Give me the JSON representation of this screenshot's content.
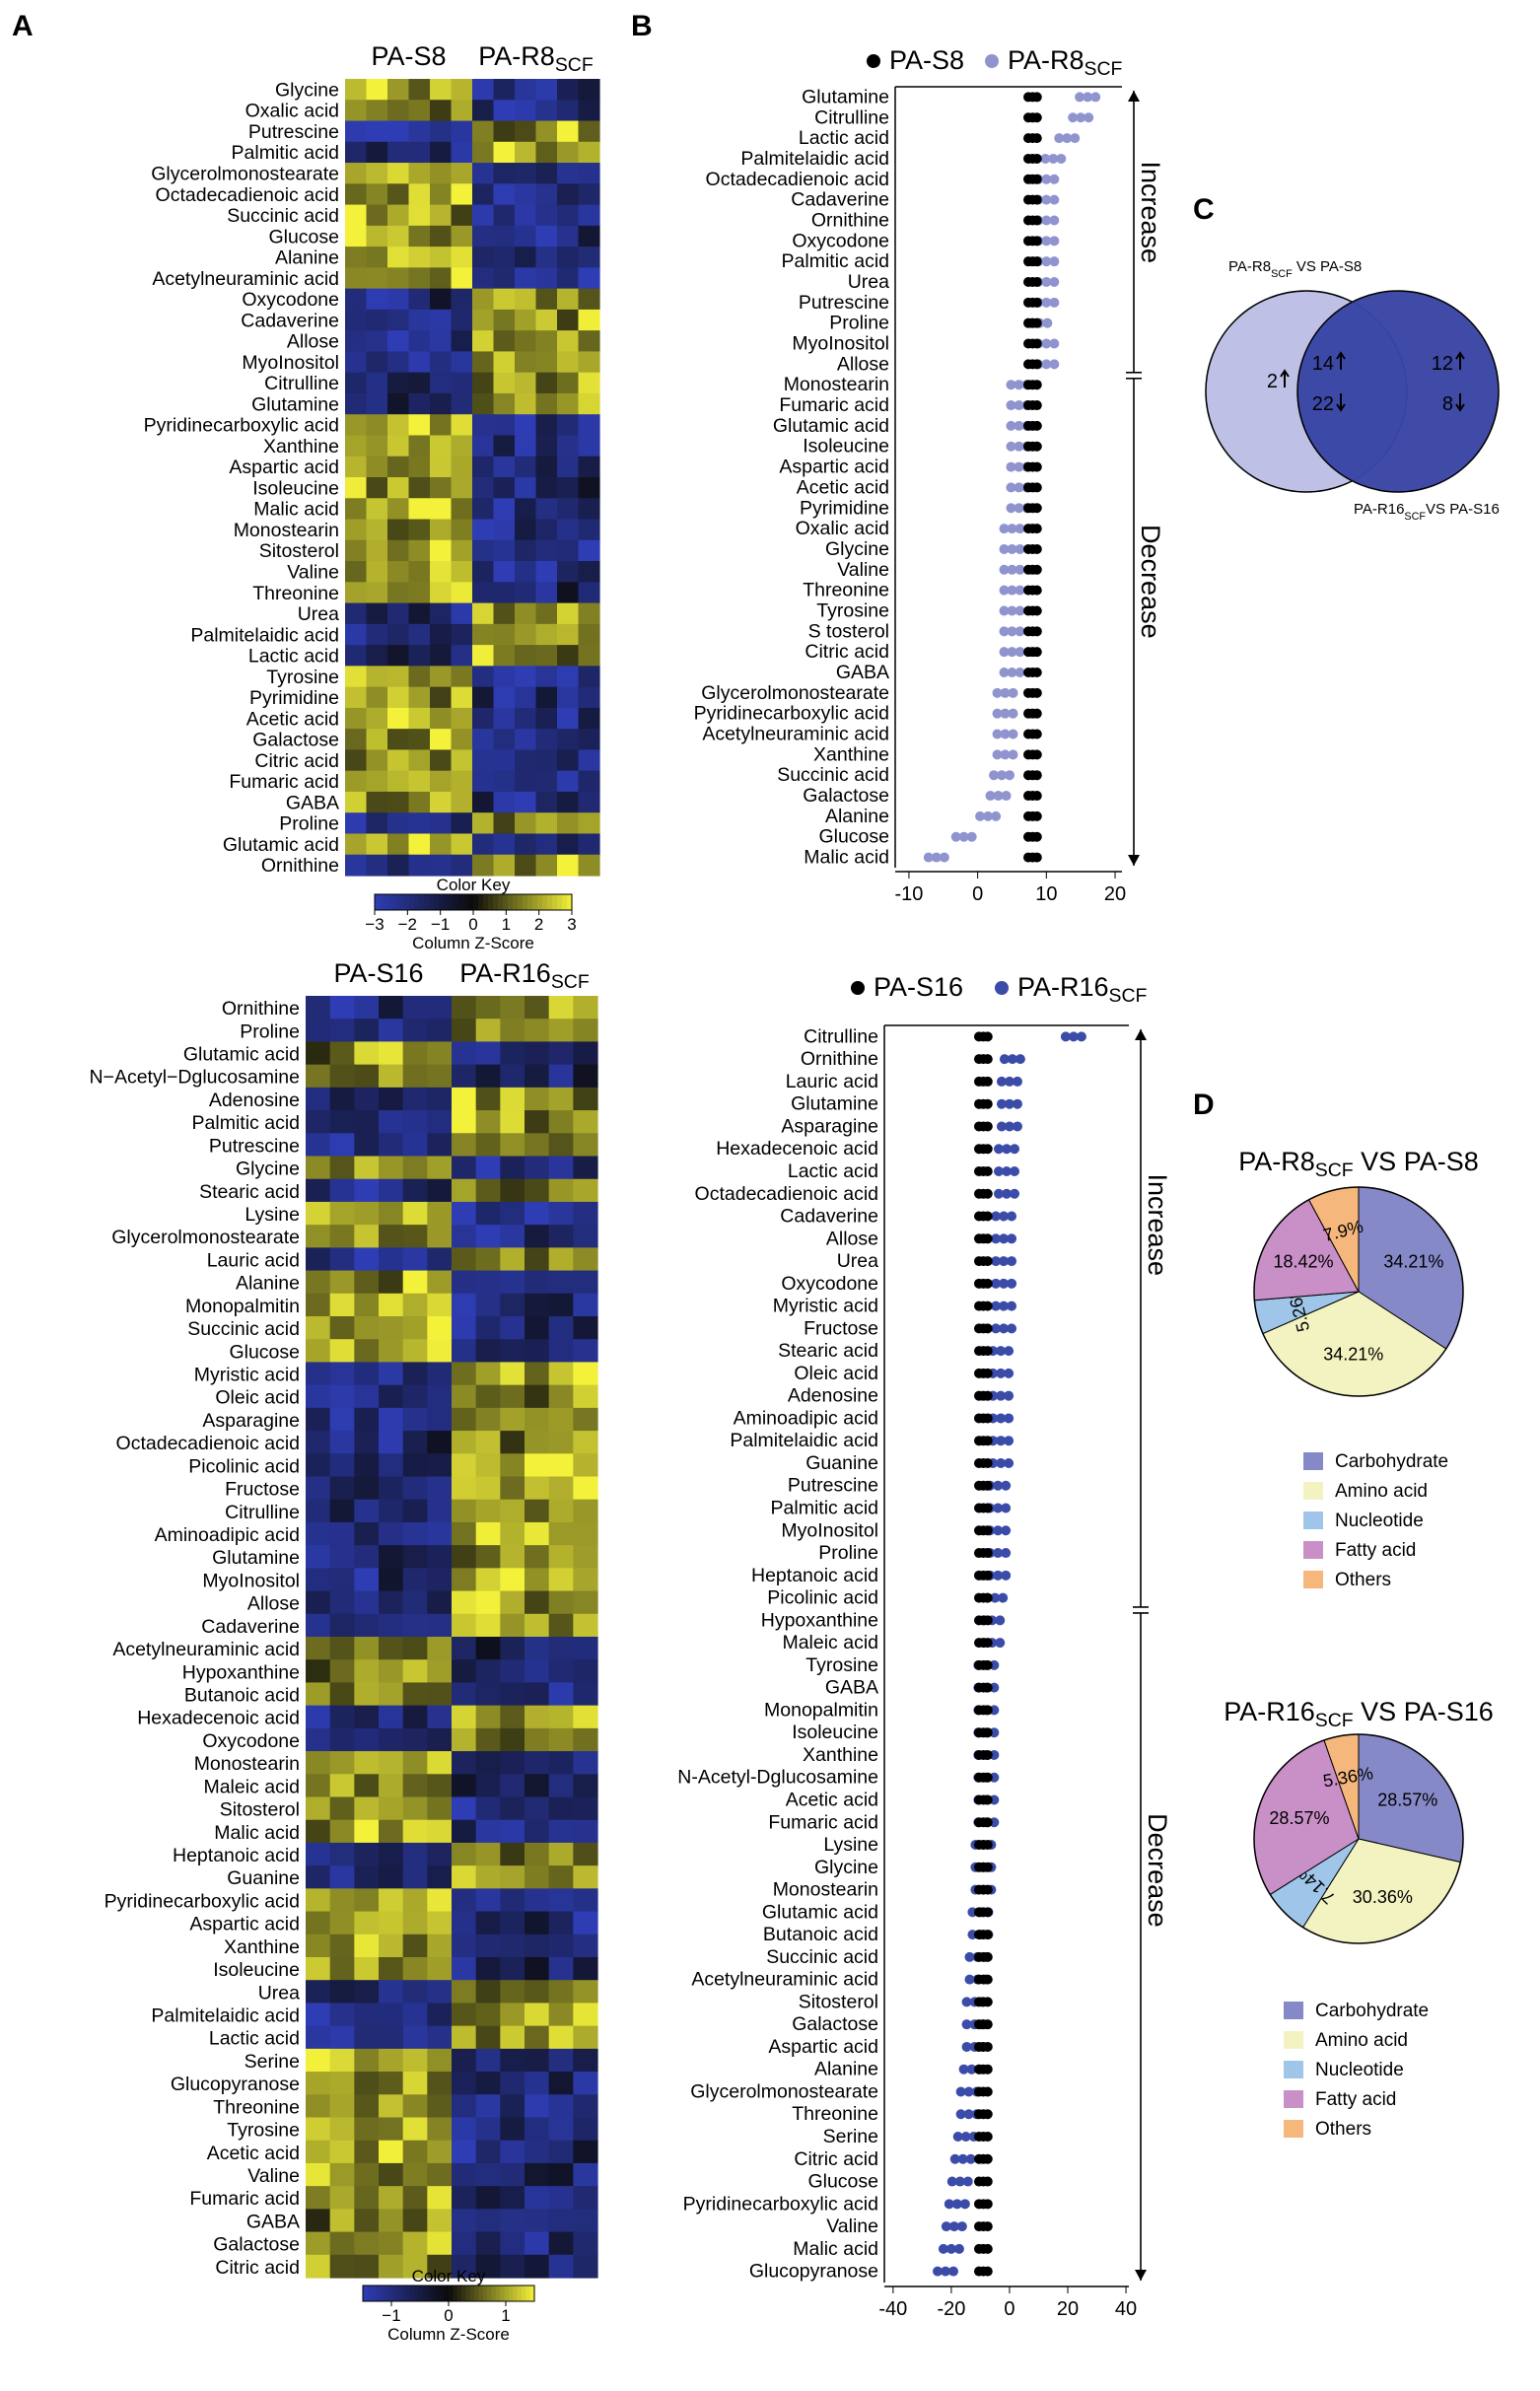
{
  "panels": {
    "A": "A",
    "B": "B",
    "C": "C",
    "D": "D"
  },
  "colors": {
    "heat_low": "#2e3db4",
    "heat_mid": "#0b0b0b",
    "heat_high": "#f3f13a",
    "s_dot": "#000000",
    "r8_dot": "#8f94cf",
    "r16_dot": "#3b4ba8",
    "pie_carbohydrate": "#8689c8",
    "pie_amino": "#f2f3c0",
    "pie_nucleotide": "#9fc6e8",
    "pie_fatty": "#c990c8",
    "pie_others": "#f6b77d",
    "venn_left": "#bfc0e6",
    "venn_right": "#3945a3"
  },
  "chart_data": [
    {
      "id": "heatmap_8",
      "type": "heatmap",
      "group_labels": [
        "PA-S8",
        "PA-R8"
      ],
      "group_subscript": "SCF",
      "columns_per_group": 6,
      "rows": [
        "Glycine",
        "Oxalic acid",
        "Putrescine",
        "Palmitic acid",
        "Glycerolmonostearate",
        "Octadecadienoic acid",
        "Succinic acid",
        "Glucose",
        "Alanine",
        "Acetylneuraminic acid",
        "Oxycodone",
        "Cadaverine",
        "Allose",
        "MyoInositol",
        "Citrulline",
        "Glutamine",
        "Pyridinecarboxylic acid",
        "Xanthine",
        "Aspartic acid",
        "Isoleucine",
        "Malic acid",
        "Monostearin",
        "Sitosterol",
        "Valine",
        "Threonine",
        "Urea",
        "Palmitelaidic acid",
        "Lactic acid",
        "Tyrosine",
        "Pyrimidine",
        "Acetic acid",
        "Galactose",
        "Citric acid",
        "Fumaric acid",
        "GABA",
        "Proline",
        "Glutamic acid",
        "Ornithine"
      ],
      "row_direction": [
        -1,
        -1,
        1,
        1,
        -1,
        -1,
        -1,
        -1,
        -1,
        -1,
        1,
        1,
        1,
        1,
        1,
        1,
        -1,
        -1,
        -1,
        -1,
        -1,
        -1,
        -1,
        -1,
        -1,
        1,
        1,
        1,
        -1,
        -1,
        -1,
        -1,
        -1,
        -1,
        -1,
        1,
        -1,
        1
      ],
      "color_key_title": "Color Key",
      "color_key_ticks": [
        "−3",
        "−2",
        "−1",
        "0",
        "1",
        "2",
        "3"
      ],
      "color_key_range": [
        -3,
        3
      ],
      "color_key_label": "Column Z-Score"
    },
    {
      "id": "heatmap_16",
      "type": "heatmap",
      "group_labels": [
        "PA-S16",
        "PA-R16"
      ],
      "group_subscript": "SCF",
      "columns_per_group": 6,
      "rows": [
        "Ornithine",
        "Proline",
        "Glutamic acid",
        "N−Acetyl−Dglucosamine",
        "Adenosine",
        "Palmitic acid",
        "Putrescine",
        "Glycine",
        "Stearic acid",
        "Lysine",
        "Glycerolmonostearate",
        "Lauric acid",
        "Alanine",
        "Monopalmitin",
        "Succinic acid",
        "Glucose",
        "Myristic acid",
        "Oleic acid",
        "Asparagine",
        "Octadecadienoic acid",
        "Picolinic acid",
        "Fructose",
        "Citrulline",
        "Aminoadipic acid",
        "Glutamine",
        "MyoInositol",
        "Allose",
        "Cadaverine",
        "Acetylneuraminic acid",
        "Hypoxanthine",
        "Butanoic acid",
        "Hexadecenoic acid",
        "Oxycodone",
        "Monostearin",
        "Maleic acid",
        "Sitosterol",
        "Malic acid",
        "Heptanoic acid",
        "Guanine",
        "Pyridinecarboxylic acid",
        "Aspartic acid",
        "Xanthine",
        "Isoleucine",
        "Urea",
        "Palmitelaidic acid",
        "Lactic acid",
        "Serine",
        "Glucopyranose",
        "Threonine",
        "Tyrosine",
        "Acetic acid",
        "Valine",
        "Fumaric acid",
        "GABA",
        "Galactose",
        "Citric acid"
      ],
      "row_direction": [
        1,
        1,
        -1,
        -1,
        1,
        1,
        1,
        -1,
        1,
        -1,
        -1,
        1,
        -1,
        -1,
        -1,
        -1,
        1,
        1,
        1,
        1,
        1,
        1,
        1,
        1,
        1,
        1,
        1,
        1,
        -1,
        -1,
        -1,
        1,
        1,
        -1,
        -1,
        -1,
        -1,
        1,
        1,
        -1,
        -1,
        -1,
        -1,
        1,
        1,
        1,
        -1,
        -1,
        -1,
        -1,
        -1,
        -1,
        -1,
        -1,
        -1,
        -1
      ],
      "color_key_title": "Color Key",
      "color_key_ticks": [
        "−1",
        "0",
        "1"
      ],
      "color_key_range": [
        -1.5,
        1.5
      ],
      "color_key_label": "Column Z-Score"
    },
    {
      "id": "dot_8",
      "type": "scatter",
      "legend": [
        {
          "name": "PA-S8",
          "sub": ""
        },
        {
          "name": "PA-R8",
          "sub": "SCF"
        }
      ],
      "categories": [
        "Glutamine",
        "Citrulline",
        "Lactic acid",
        "Palmitelaidic acid",
        "Octadecadienoic acid",
        "Cadaverine",
        "Ornithine",
        "Oxycodone",
        "Palmitic acid",
        "Urea",
        "Putrescine",
        "Proline",
        "MyoInositol",
        "Allose",
        "Monostearin",
        "Fumaric acid",
        "Glutamic acid",
        "Isoleucine",
        "Aspartic acid",
        "Acetic acid",
        "Pyrimidine",
        "Oxalic acid",
        "Glycine",
        "Valine",
        "Threonine",
        "Tyrosine",
        "S tosterol",
        "Citric acid",
        "GABA",
        "Glycerolmonostearate",
        "Pyridinecarboxylic acid",
        "Acetylneuraminic acid",
        "Xanthine",
        "Succinic acid",
        "Galactose",
        "Alanine",
        "Glucose",
        "Malic acid"
      ],
      "s_value": 8,
      "r_values": [
        16,
        15,
        13,
        11,
        10,
        10,
        10,
        10,
        10,
        10,
        10,
        9,
        10,
        10,
        6,
        6,
        6,
        6,
        6,
        6,
        6,
        5,
        5,
        5,
        5,
        5,
        5,
        5,
        5,
        4,
        4,
        4,
        4,
        3.5,
        3,
        1.5,
        -2,
        -6
      ],
      "xlim": [
        -12,
        21
      ],
      "xticks": [
        "-10",
        "0",
        "10",
        "20"
      ],
      "xtick_values": [
        -10,
        0,
        10,
        20
      ],
      "brackets": [
        {
          "label": "Increase",
          "from": "Glutamine",
          "to": "Allose"
        },
        {
          "label": "Decrease",
          "from": "Monostearin",
          "to": "Malic acid"
        }
      ]
    },
    {
      "id": "dot_16",
      "type": "scatter",
      "legend": [
        {
          "name": "PA-S16",
          "sub": ""
        },
        {
          "name": "PA-R16",
          "sub": "SCF"
        }
      ],
      "categories": [
        "Citrulline",
        "Ornithine",
        "Lauric acid",
        "Glutamine",
        "Asparagine",
        "Hexadecenoic acid",
        "Lactic acid",
        "Octadecadienoic acid",
        "Cadaverine",
        "Allose",
        "Urea",
        "Oxycodone",
        "Myristic acid",
        "Fructose",
        "Stearic acid",
        "Oleic acid",
        "Adenosine",
        "Aminoadipic acid",
        "Palmitelaidic acid",
        "Guanine",
        "Putrescine",
        "Palmitic acid",
        "MyoInositol",
        "Proline",
        "Heptanoic acid",
        "Picolinic acid",
        "Hypoxanthine",
        "Maleic acid",
        "Tyrosine",
        "GABA",
        "Monopalmitin",
        "Isoleucine",
        "Xanthine",
        "N-Acetyl-Dglucosamine",
        "Acetic acid",
        "Fumaric acid",
        "Lysine",
        "Glycine",
        "Monostearin",
        "Glutamic acid",
        "Butanoic acid",
        "Succinic acid",
        "Acetylneuraminic acid",
        "Sitosterol",
        "Galactose",
        "Aspartic acid",
        "Alanine",
        "Glycerolmonostearate",
        "Threonine",
        "Serine",
        "Citric acid",
        "Glucose",
        "Pyridinecarboxylic acid",
        "Valine",
        "Malic acid",
        "Glucopyranose"
      ],
      "s_value": -9,
      "r_values": [
        22,
        1,
        0,
        0,
        0,
        -1,
        -1,
        -1,
        -2,
        -2,
        -2,
        -2,
        -2,
        -2,
        -3,
        -3,
        -3,
        -3,
        -3,
        -3,
        -4,
        -4,
        -4,
        -4,
        -4,
        -5,
        -6,
        -6,
        -8,
        -8,
        -8,
        -8,
        -8,
        -8,
        -8,
        -8,
        -9,
        -9,
        -9,
        -10,
        -10,
        -11,
        -11,
        -12,
        -12,
        -12,
        -13,
        -14,
        -14,
        -15,
        -16,
        -17,
        -18,
        -19,
        -20,
        -22
      ],
      "xlim": [
        -43,
        41
      ],
      "xticks": [
        "-40",
        "-20",
        "0",
        "20",
        "40"
      ],
      "xtick_values": [
        -40,
        -20,
        0,
        20,
        40
      ],
      "brackets": [
        {
          "label": "Increase",
          "from": "Citrulline",
          "to": "Picolinic acid"
        },
        {
          "label": "Decrease",
          "from": "Hypoxanthine",
          "to": "Glucopyranose"
        }
      ]
    },
    {
      "id": "venn",
      "type": "venn",
      "left_label": {
        "pre": "PA-R8",
        "sub": "SCF",
        "post": " VS PA-S8"
      },
      "right_label": {
        "pre": "PA-R16",
        "sub": "SCF",
        "post": "VS PA-S16"
      },
      "left_only": {
        "up": "2"
      },
      "overlap": {
        "up": "14",
        "down": "22"
      },
      "right_only": {
        "up": "12",
        "down": "8"
      }
    },
    {
      "id": "pie_8",
      "type": "pie",
      "title": {
        "pre": "PA-R8",
        "sub": "SCF",
        "post": " VS PA-S8"
      },
      "slices": [
        {
          "name": "Carbohydrate",
          "value": 34.21,
          "label": "34.21%"
        },
        {
          "name": "Amino acid",
          "value": 34.21,
          "label": "34.21%"
        },
        {
          "name": "Nucleotide",
          "value": 5.26,
          "label": "5.26%"
        },
        {
          "name": "Fatty acid",
          "value": 18.42,
          "label": "18.42%"
        },
        {
          "name": "Others",
          "value": 7.9,
          "label": "7.9%"
        }
      ]
    },
    {
      "id": "pie_16",
      "type": "pie",
      "title": {
        "pre": "PA-R16",
        "sub": "SCF",
        "post": " VS PA-S16"
      },
      "slices": [
        {
          "name": "Carbohydrate",
          "value": 28.57,
          "label": "28.57%"
        },
        {
          "name": "Amino acid",
          "value": 30.36,
          "label": "30.36%"
        },
        {
          "name": "Nucleotide",
          "value": 7.14,
          "label": "7.14%"
        },
        {
          "name": "Fatty acid",
          "value": 28.57,
          "label": "28.57%"
        },
        {
          "name": "Others",
          "value": 5.36,
          "label": "5.36%"
        }
      ]
    }
  ]
}
